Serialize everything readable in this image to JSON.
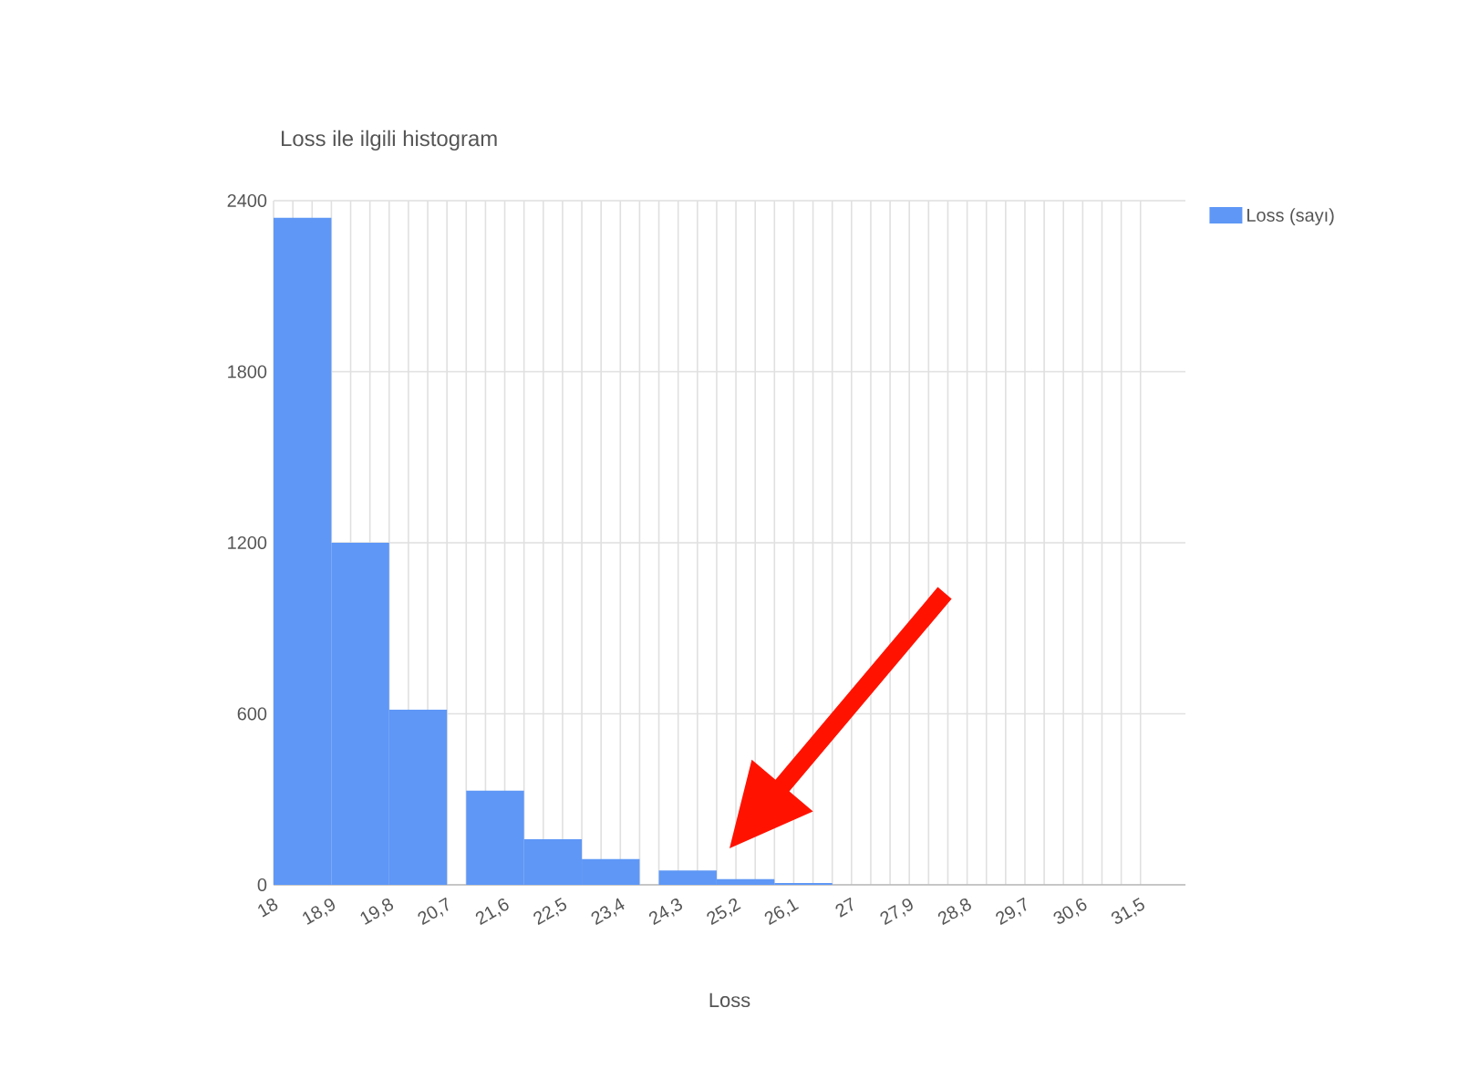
{
  "chart_data": {
    "type": "histogram",
    "title": "Loss ile ilgili histogram",
    "xlabel": "Loss",
    "bins": [
      18,
      18.9,
      19.8,
      20.7,
      21.0,
      21.9,
      22.8,
      23.7,
      24.0,
      24.9,
      25.8,
      26.7
    ],
    "series": [
      {
        "name": "Loss (sayı)",
        "color": "#5e97f6",
        "values": [
          2340,
          1200,
          614,
          0,
          330,
          160,
          90,
          0,
          50,
          20,
          6
        ]
      }
    ],
    "xlim": [
      18,
      32.2
    ],
    "xticks": [
      18,
      {
        "value": 18.9,
        "label": "18,9"
      },
      {
        "value": 19.8,
        "label": "19,8"
      },
      {
        "value": 20.7,
        "label": "20,7"
      },
      {
        "value": 21.6,
        "label": "21,6"
      },
      {
        "value": 22.5,
        "label": "22,5"
      },
      {
        "value": 23.4,
        "label": "23,4"
      },
      {
        "value": 24.3,
        "label": "24,3"
      },
      {
        "value": 25.2,
        "label": "25,2"
      },
      {
        "value": 26.1,
        "label": "26,1"
      },
      27,
      {
        "value": 27.9,
        "label": "27,9"
      },
      {
        "value": 28.8,
        "label": "28,8"
      },
      {
        "value": 29.7,
        "label": "29,7"
      },
      {
        "value": 30.6,
        "label": "30,6"
      },
      {
        "value": 31.5,
        "label": "31,5"
      }
    ],
    "ylim": [
      0,
      2400
    ],
    "yticks": [
      0,
      600,
      1200,
      1800,
      2400
    ],
    "grid": true,
    "legend": "top right"
  }
}
